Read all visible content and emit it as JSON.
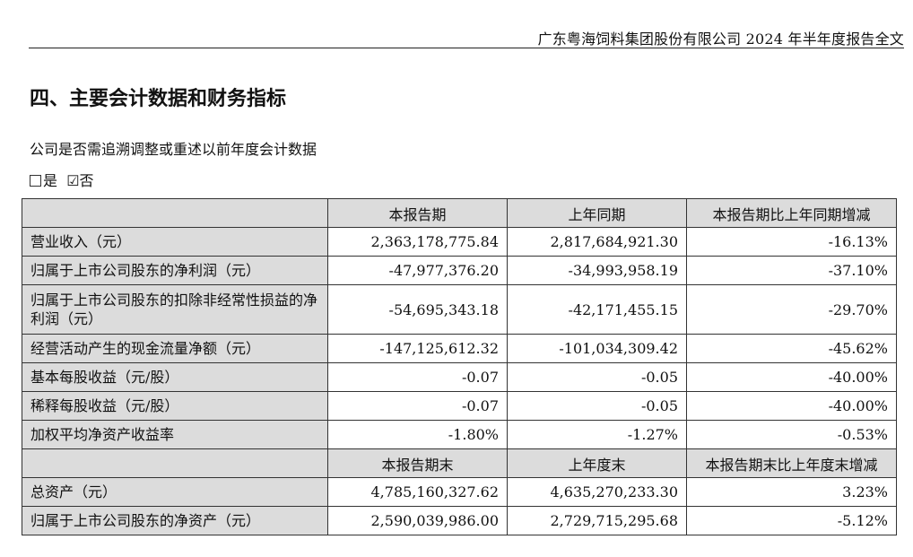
{
  "header": {
    "title": "广东粤海饲料集团股份有限公司 2024 年半年度报告全文"
  },
  "section": {
    "title": "四、主要会计数据和财务指标",
    "question": "公司是否需追溯调整或重述以前年度会计数据",
    "options": {
      "yes_mark": "□",
      "yes_label": "是",
      "no_mark": "☑",
      "no_label": "否"
    }
  },
  "table": {
    "header1": [
      "",
      "本报告期",
      "上年同期",
      "本报告期比上年同期增减"
    ],
    "rows1": [
      {
        "label": "营业收入（元）",
        "current": "2,363,178,775.84",
        "prior": "2,817,684,921.30",
        "change": "-16.13%"
      },
      {
        "label": "归属于上市公司股东的净利润（元）",
        "current": "-47,977,376.20",
        "prior": "-34,993,958.19",
        "change": "-37.10%"
      },
      {
        "label": "归属于上市公司股东的扣除非经常性损益的净利润（元）",
        "current": "-54,695,343.18",
        "prior": "-42,171,455.15",
        "change": "-29.70%"
      },
      {
        "label": "经营活动产生的现金流量净额（元）",
        "current": "-147,125,612.32",
        "prior": "-101,034,309.42",
        "change": "-45.62%"
      },
      {
        "label": "基本每股收益（元/股）",
        "current": "-0.07",
        "prior": "-0.05",
        "change": "-40.00%"
      },
      {
        "label": "稀释每股收益（元/股）",
        "current": "-0.07",
        "prior": "-0.05",
        "change": "-40.00%"
      },
      {
        "label": "加权平均净资产收益率",
        "current": "-1.80%",
        "prior": "-1.27%",
        "change": "-0.53%"
      }
    ],
    "header2": [
      "",
      "本报告期末",
      "上年度末",
      "本报告期末比上年度末增减"
    ],
    "rows2": [
      {
        "label": "总资产（元）",
        "current": "4,785,160,327.62",
        "prior": "4,635,270,233.30",
        "change": "3.23%"
      },
      {
        "label": "归属于上市公司股东的净资产（元）",
        "current": "2,590,039,986.00",
        "prior": "2,729,715,295.68",
        "change": "-5.12%"
      }
    ]
  }
}
